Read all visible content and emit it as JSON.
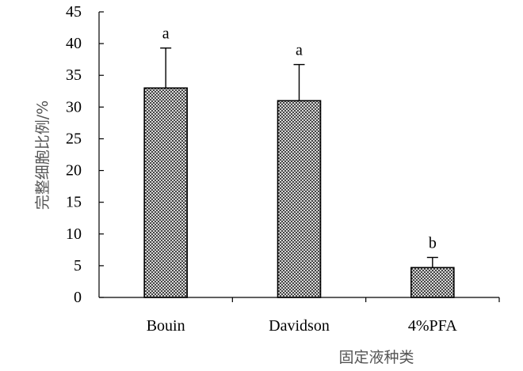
{
  "chart_data": {
    "type": "bar",
    "categories": [
      "Bouin",
      "Davidson",
      "4%PFA"
    ],
    "series": [
      {
        "values": [
          33,
          31,
          4.7
        ],
        "error": [
          6.3,
          5.7,
          1.6
        ],
        "significance": [
          "a",
          "a",
          "b"
        ]
      }
    ],
    "xlabel": "固定液种类",
    "ylabel": "完整细胞比例/%",
    "ylim": [
      0,
      45
    ],
    "yticks": [
      0,
      5,
      10,
      15,
      20,
      25,
      30,
      35,
      40,
      45
    ],
    "grid": false,
    "legend": "none",
    "bar_fill": "#d9d9d9",
    "bar_pattern": "crosshatch",
    "colors": {
      "axis": "#000000",
      "bar_stroke": "#000000"
    }
  }
}
